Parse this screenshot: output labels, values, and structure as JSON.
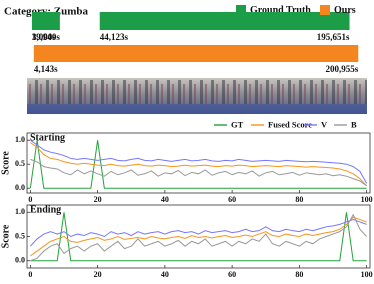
{
  "chart_data": [
    {
      "type": "timeline",
      "title": "Category: Zumba",
      "xlim": [
        0,
        202000
      ],
      "series": [
        {
          "name": "Ground Truth",
          "color": "#1c9e48",
          "values": [
            [
              3000,
              19940
            ],
            [
              44123,
              195651
            ]
          ],
          "value_labels": [
            [
              "3,000s",
              "19,940s"
            ],
            [
              "44,123s",
              "195,651s"
            ]
          ]
        },
        {
          "name": "Ours",
          "color": "#f5851f",
          "values": [
            [
              4143,
              200955
            ]
          ],
          "value_labels": [
            [
              "4,143s",
              "200,955s"
            ]
          ]
        }
      ]
    },
    {
      "type": "line",
      "title": "Starting",
      "ylabel": "Score",
      "xlim": [
        -1,
        101
      ],
      "ylim": [
        -0.1,
        1.15
      ],
      "xticks": [
        0,
        20,
        40,
        60,
        80,
        100
      ],
      "yticks": [
        {
          "value": 0,
          "label": "0.0"
        },
        {
          "value": 0.5,
          "label": "0.5"
        },
        {
          "value": 1,
          "label": "1.0"
        }
      ],
      "x": [
        0,
        2,
        4,
        6,
        8,
        10,
        12,
        14,
        16,
        18,
        20,
        22,
        24,
        26,
        28,
        30,
        32,
        34,
        36,
        38,
        40,
        42,
        44,
        46,
        48,
        50,
        52,
        54,
        56,
        58,
        60,
        62,
        64,
        66,
        68,
        70,
        72,
        74,
        76,
        78,
        80,
        82,
        84,
        86,
        88,
        90,
        92,
        94,
        96,
        98,
        100
      ],
      "series": [
        {
          "name": "GT",
          "color": "#22a33a",
          "values": [
            0,
            1,
            0,
            0,
            0,
            0,
            0,
            0,
            0,
            0,
            1,
            0,
            0,
            0,
            0,
            0,
            0,
            0,
            0,
            0,
            0,
            0,
            0,
            0,
            0,
            0,
            0,
            0,
            0,
            0,
            0,
            0,
            0,
            0,
            0,
            0,
            0,
            0,
            0,
            0,
            0,
            0,
            0,
            0,
            0,
            0,
            0,
            0,
            0,
            0,
            0
          ]
        },
        {
          "name": "Fused Score",
          "color": "#f7941d",
          "values": [
            0.95,
            0.85,
            0.7,
            0.62,
            0.6,
            0.55,
            0.52,
            0.5,
            0.52,
            0.5,
            0.48,
            0.47,
            0.5,
            0.47,
            0.46,
            0.48,
            0.5,
            0.47,
            0.46,
            0.48,
            0.47,
            0.45,
            0.46,
            0.48,
            0.46,
            0.47,
            0.48,
            0.46,
            0.45,
            0.47,
            0.46,
            0.48,
            0.47,
            0.45,
            0.46,
            0.47,
            0.46,
            0.45,
            0.47,
            0.46,
            0.45,
            0.44,
            0.45,
            0.44,
            0.43,
            0.42,
            0.4,
            0.36,
            0.3,
            0.2,
            0.05
          ]
        },
        {
          "name": "V",
          "color": "#7676ff",
          "values": [
            1.0,
            0.9,
            0.8,
            0.75,
            0.72,
            0.68,
            0.62,
            0.6,
            0.62,
            0.6,
            0.58,
            0.6,
            0.62,
            0.58,
            0.57,
            0.6,
            0.62,
            0.58,
            0.57,
            0.6,
            0.58,
            0.56,
            0.58,
            0.6,
            0.57,
            0.58,
            0.6,
            0.57,
            0.56,
            0.58,
            0.57,
            0.6,
            0.58,
            0.56,
            0.57,
            0.58,
            0.57,
            0.56,
            0.58,
            0.57,
            0.56,
            0.55,
            0.56,
            0.55,
            0.54,
            0.53,
            0.52,
            0.5,
            0.45,
            0.35,
            0.1
          ]
        },
        {
          "name": "B",
          "color": "#999999",
          "values": [
            0.6,
            0.55,
            0.45,
            0.42,
            0.4,
            0.32,
            0.28,
            0.38,
            0.3,
            0.36,
            0.3,
            0.25,
            0.35,
            0.28,
            0.32,
            0.38,
            0.27,
            0.3,
            0.36,
            0.25,
            0.32,
            0.3,
            0.37,
            0.26,
            0.33,
            0.3,
            0.38,
            0.27,
            0.32,
            0.35,
            0.28,
            0.33,
            0.3,
            0.36,
            0.25,
            0.32,
            0.35,
            0.28,
            0.3,
            0.33,
            0.27,
            0.32,
            0.3,
            0.28,
            0.3,
            0.26,
            0.28,
            0.25,
            0.2,
            0.15,
            0.05
          ]
        }
      ]
    },
    {
      "type": "line",
      "title": "Ending",
      "ylabel": "Score",
      "xlim": [
        -1,
        101
      ],
      "ylim": [
        -0.15,
        1.15
      ],
      "xticks": [
        0,
        20,
        40,
        60,
        80,
        100
      ],
      "yticks": [
        {
          "value": 0,
          "label": "0.0"
        },
        {
          "value": 0.5,
          "label": "0.5"
        },
        {
          "value": 1,
          "label": "1.0"
        }
      ],
      "x": [
        0,
        2,
        4,
        6,
        8,
        10,
        12,
        14,
        16,
        18,
        20,
        22,
        24,
        26,
        28,
        30,
        32,
        34,
        36,
        38,
        40,
        42,
        44,
        46,
        48,
        50,
        52,
        54,
        56,
        58,
        60,
        62,
        64,
        66,
        68,
        70,
        72,
        74,
        76,
        78,
        80,
        82,
        84,
        86,
        88,
        90,
        92,
        94,
        96,
        98,
        100
      ],
      "series": [
        {
          "name": "GT",
          "color": "#22a33a",
          "values": [
            0,
            0,
            0,
            0,
            0,
            1,
            0,
            0,
            0,
            0,
            0,
            0,
            0,
            0,
            0,
            0,
            0,
            0,
            0,
            0,
            0,
            0,
            0,
            0,
            0,
            0,
            0,
            0,
            0,
            0,
            0,
            0,
            0,
            0,
            0,
            0,
            0,
            0,
            0,
            0,
            0,
            0,
            0,
            0,
            0,
            0,
            0,
            1,
            0,
            0,
            0
          ]
        },
        {
          "name": "Fused Score",
          "color": "#f7941d",
          "values": [
            0.1,
            0.2,
            0.3,
            0.4,
            0.45,
            0.5,
            0.4,
            0.38,
            0.42,
            0.45,
            0.48,
            0.42,
            0.45,
            0.5,
            0.44,
            0.46,
            0.48,
            0.45,
            0.5,
            0.47,
            0.45,
            0.48,
            0.5,
            0.46,
            0.52,
            0.48,
            0.5,
            0.47,
            0.5,
            0.52,
            0.48,
            0.5,
            0.53,
            0.5,
            0.55,
            0.6,
            0.52,
            0.5,
            0.55,
            0.52,
            0.5,
            0.55,
            0.52,
            0.55,
            0.58,
            0.6,
            0.65,
            0.75,
            0.9,
            0.85,
            0.8
          ]
        },
        {
          "name": "V",
          "color": "#7676ff",
          "values": [
            0.3,
            0.45,
            0.55,
            0.6,
            0.55,
            0.6,
            0.5,
            0.55,
            0.52,
            0.58,
            0.55,
            0.5,
            0.6,
            0.55,
            0.58,
            0.52,
            0.6,
            0.55,
            0.58,
            0.6,
            0.55,
            0.6,
            0.62,
            0.58,
            0.6,
            0.55,
            0.62,
            0.58,
            0.6,
            0.62,
            0.58,
            0.6,
            0.65,
            0.6,
            0.62,
            0.7,
            0.62,
            0.6,
            0.65,
            0.62,
            0.6,
            0.65,
            0.62,
            0.66,
            0.7,
            0.72,
            0.75,
            0.8,
            0.85,
            0.8,
            0.75
          ]
        },
        {
          "name": "B",
          "color": "#999999",
          "values": [
            0.0,
            0.05,
            0.2,
            0.3,
            0.35,
            0.15,
            0.25,
            0.3,
            0.2,
            0.3,
            0.35,
            0.2,
            0.3,
            0.4,
            0.25,
            0.3,
            0.45,
            0.3,
            0.35,
            0.4,
            0.3,
            0.35,
            0.42,
            0.3,
            0.4,
            0.35,
            0.45,
            0.3,
            0.35,
            0.4,
            0.3,
            0.4,
            0.35,
            0.45,
            0.4,
            0.55,
            0.35,
            0.3,
            0.4,
            0.35,
            0.3,
            0.4,
            0.35,
            0.45,
            0.5,
            0.55,
            0.6,
            0.7,
            0.95,
            0.65,
            0.5
          ]
        }
      ]
    }
  ]
}
